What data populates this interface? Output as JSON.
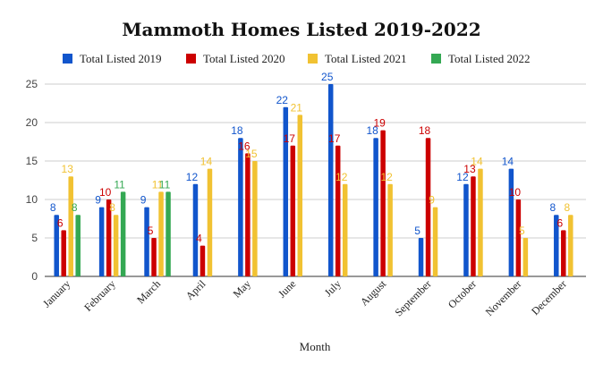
{
  "chart_data": {
    "type": "bar",
    "title": "Mammoth Homes Listed 2019-2022",
    "xlabel": "Month",
    "ylabel": "",
    "ylim": [
      0,
      25
    ],
    "yticks": [
      0,
      5,
      10,
      15,
      20,
      25
    ],
    "grid": true,
    "legend_position": "top",
    "categories": [
      "January",
      "February",
      "March",
      "April",
      "May",
      "June",
      "July",
      "August",
      "September",
      "October",
      "November",
      "December"
    ],
    "series": [
      {
        "name": "Total Listed 2019",
        "color": "#1155CC",
        "label_color": "#1155CC",
        "values": [
          8,
          9,
          9,
          12,
          18,
          22,
          25,
          18,
          5,
          12,
          14,
          8
        ]
      },
      {
        "name": "Total Listed 2020",
        "color": "#CC0000",
        "label_color": "#CC0000",
        "values": [
          6,
          10,
          5,
          4,
          16,
          17,
          17,
          19,
          18,
          13,
          10,
          6
        ]
      },
      {
        "name": "Total Listed 2021",
        "color": "#F1C232",
        "label_color": "#F1C232",
        "values": [
          13,
          8,
          11,
          14,
          15,
          21,
          12,
          12,
          9,
          14,
          5,
          8
        ]
      },
      {
        "name": "Total Listed 2022",
        "color": "#34A853",
        "label_color": "#34A853",
        "values": [
          8,
          11,
          11,
          null,
          null,
          null,
          null,
          null,
          null,
          null,
          null,
          null
        ]
      }
    ]
  }
}
